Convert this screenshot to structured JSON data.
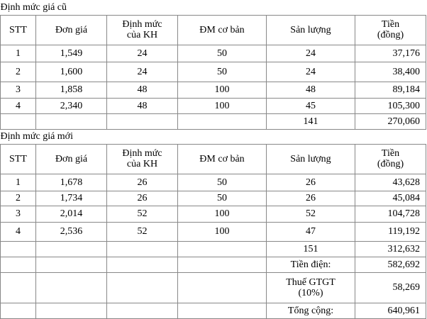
{
  "sections": [
    {
      "title": "Định mức giá cũ",
      "header": [
        "STT",
        "Đơn giá",
        "Định mức của KH",
        "ĐM cơ bản",
        "Sản lượng",
        "Tiền (đồng)"
      ],
      "rows": [
        [
          "1",
          "1,549",
          "24",
          "50",
          "24",
          "37,176"
        ],
        [
          "2",
          "1,600",
          "24",
          "50",
          "24",
          "38,400"
        ],
        [
          "3",
          "1,858",
          "48",
          "100",
          "48",
          "89,184"
        ],
        [
          "4",
          "2,340",
          "48",
          "100",
          "45",
          "105,300"
        ]
      ],
      "total": {
        "quantity": "141",
        "amount": "270,060"
      }
    },
    {
      "title": "Định mức giá mới",
      "header": [
        "STT",
        "Đơn giá",
        "Định mức của KH",
        "ĐM cơ bản",
        "Sản lượng",
        "Tiền (đồng)"
      ],
      "rows": [
        [
          "1",
          "1,678",
          "26",
          "50",
          "26",
          "43,628"
        ],
        [
          "2",
          "1,734",
          "26",
          "50",
          "26",
          "45,084"
        ],
        [
          "3",
          "2,014",
          "52",
          "100",
          "52",
          "104,728"
        ],
        [
          "4",
          "2,536",
          "52",
          "100",
          "47",
          "119,192"
        ]
      ],
      "total": {
        "quantity": "151",
        "amount": "312,632"
      }
    }
  ],
  "summary": [
    {
      "label": "Tiền điện:",
      "value": "582,692"
    },
    {
      "label": "Thuế GTGT (10%)",
      "value": "58,269"
    },
    {
      "label": "Tổng cộng:",
      "value": "640,961"
    }
  ]
}
